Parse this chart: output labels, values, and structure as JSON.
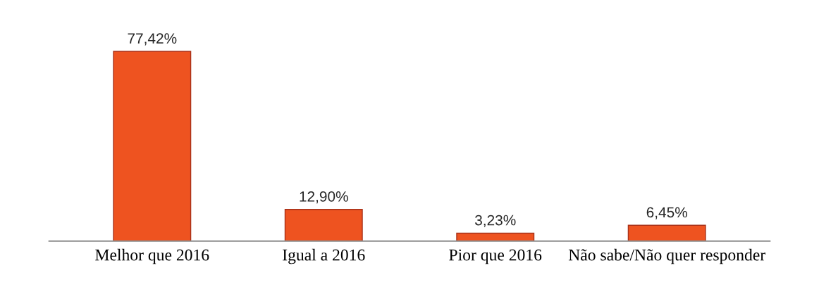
{
  "chart_data": {
    "type": "bar",
    "categories": [
      "Melhor que 2016",
      "Igual a 2016",
      "Pior que 2016",
      "Não sabe/Não quer responder"
    ],
    "values": [
      77.42,
      12.9,
      3.23,
      6.45
    ],
    "color": "#ee5320",
    "value_labels": [
      "77,42%",
      "12,90%",
      "3,23%",
      "6,45%"
    ]
  }
}
